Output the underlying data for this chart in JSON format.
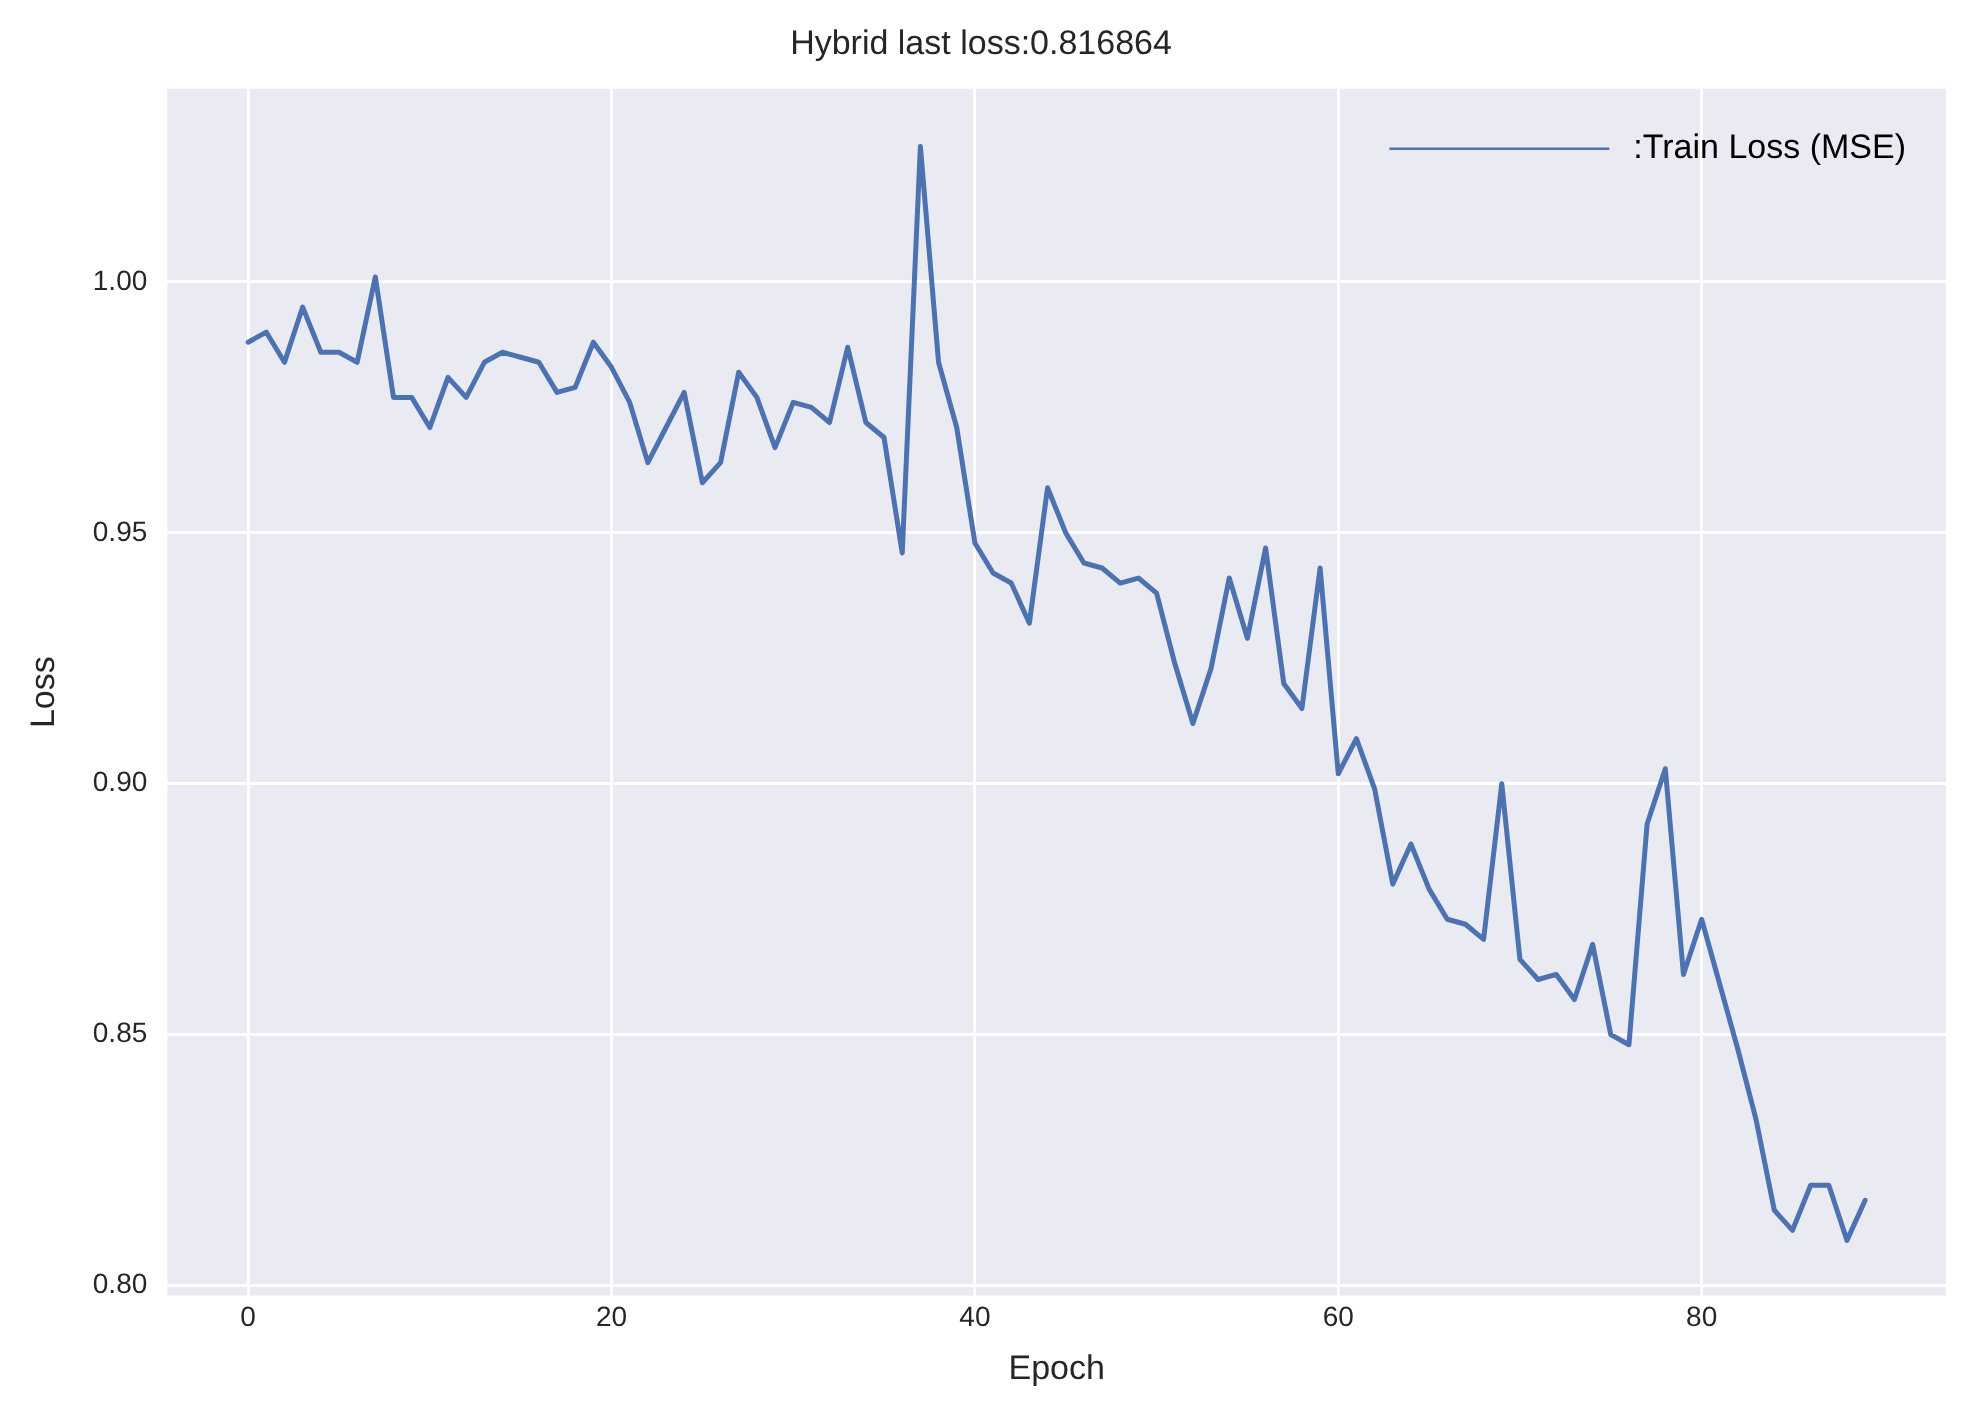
{
  "chart_data": {
    "type": "line",
    "title": "Hybrid last loss:0.816864",
    "xlabel": "Epoch",
    "ylabel": "Loss",
    "x": [
      0,
      1,
      2,
      3,
      4,
      5,
      6,
      7,
      8,
      9,
      10,
      11,
      12,
      13,
      14,
      15,
      16,
      17,
      18,
      19,
      20,
      21,
      22,
      23,
      24,
      25,
      26,
      27,
      28,
      29,
      30,
      31,
      32,
      33,
      34,
      35,
      36,
      37,
      38,
      39,
      40,
      41,
      42,
      43,
      44,
      45,
      46,
      47,
      48,
      49,
      50,
      51,
      52,
      53,
      54,
      55,
      56,
      57,
      58,
      59,
      60,
      61,
      62,
      63,
      64,
      65,
      66,
      67,
      68,
      69,
      70,
      71,
      72,
      73,
      74,
      75,
      76,
      77,
      78,
      79,
      80,
      81,
      82,
      83,
      84,
      85,
      86,
      87,
      88,
      89
    ],
    "series": [
      {
        "name": ":Train Loss (MSE)",
        "color": "#4c72b0",
        "values": [
          0.988,
          0.99,
          0.984,
          0.995,
          0.986,
          0.986,
          0.984,
          1.001,
          0.977,
          0.977,
          0.971,
          0.981,
          0.977,
          0.984,
          0.986,
          0.985,
          0.984,
          0.978,
          0.979,
          0.988,
          0.983,
          0.976,
          0.964,
          0.971,
          0.978,
          0.96,
          0.964,
          0.982,
          0.977,
          0.967,
          0.976,
          0.975,
          0.972,
          0.987,
          0.972,
          0.969,
          0.946,
          1.027,
          0.984,
          0.971,
          0.948,
          0.942,
          0.94,
          0.932,
          0.959,
          0.95,
          0.944,
          0.943,
          0.94,
          0.941,
          0.938,
          0.924,
          0.912,
          0.923,
          0.941,
          0.929,
          0.947,
          0.92,
          0.915,
          0.943,
          0.902,
          0.909,
          0.899,
          0.88,
          0.888,
          0.879,
          0.873,
          0.872,
          0.869,
          0.9,
          0.865,
          0.861,
          0.862,
          0.857,
          0.868,
          0.85,
          0.848,
          0.892,
          0.903,
          0.862,
          0.873,
          0.86,
          0.847,
          0.833,
          0.815,
          0.811,
          0.82,
          0.82,
          0.809,
          0.817
        ]
      }
    ],
    "xlim": [
      -4.45,
      93.45
    ],
    "xticks": [
      0,
      20,
      40,
      60,
      80
    ],
    "ylim": [
      0.798,
      1.0385
    ],
    "yticks": [
      {
        "value": 0.8,
        "label": "0.80"
      },
      {
        "value": 0.85,
        "label": "0.85"
      },
      {
        "value": 0.9,
        "label": "0.90"
      },
      {
        "value": 0.95,
        "label": "0.95"
      },
      {
        "value": 1.0,
        "label": "1.00"
      }
    ],
    "grid": true,
    "legend": "top right",
    "marker": "none",
    "line_style": "solid"
  }
}
